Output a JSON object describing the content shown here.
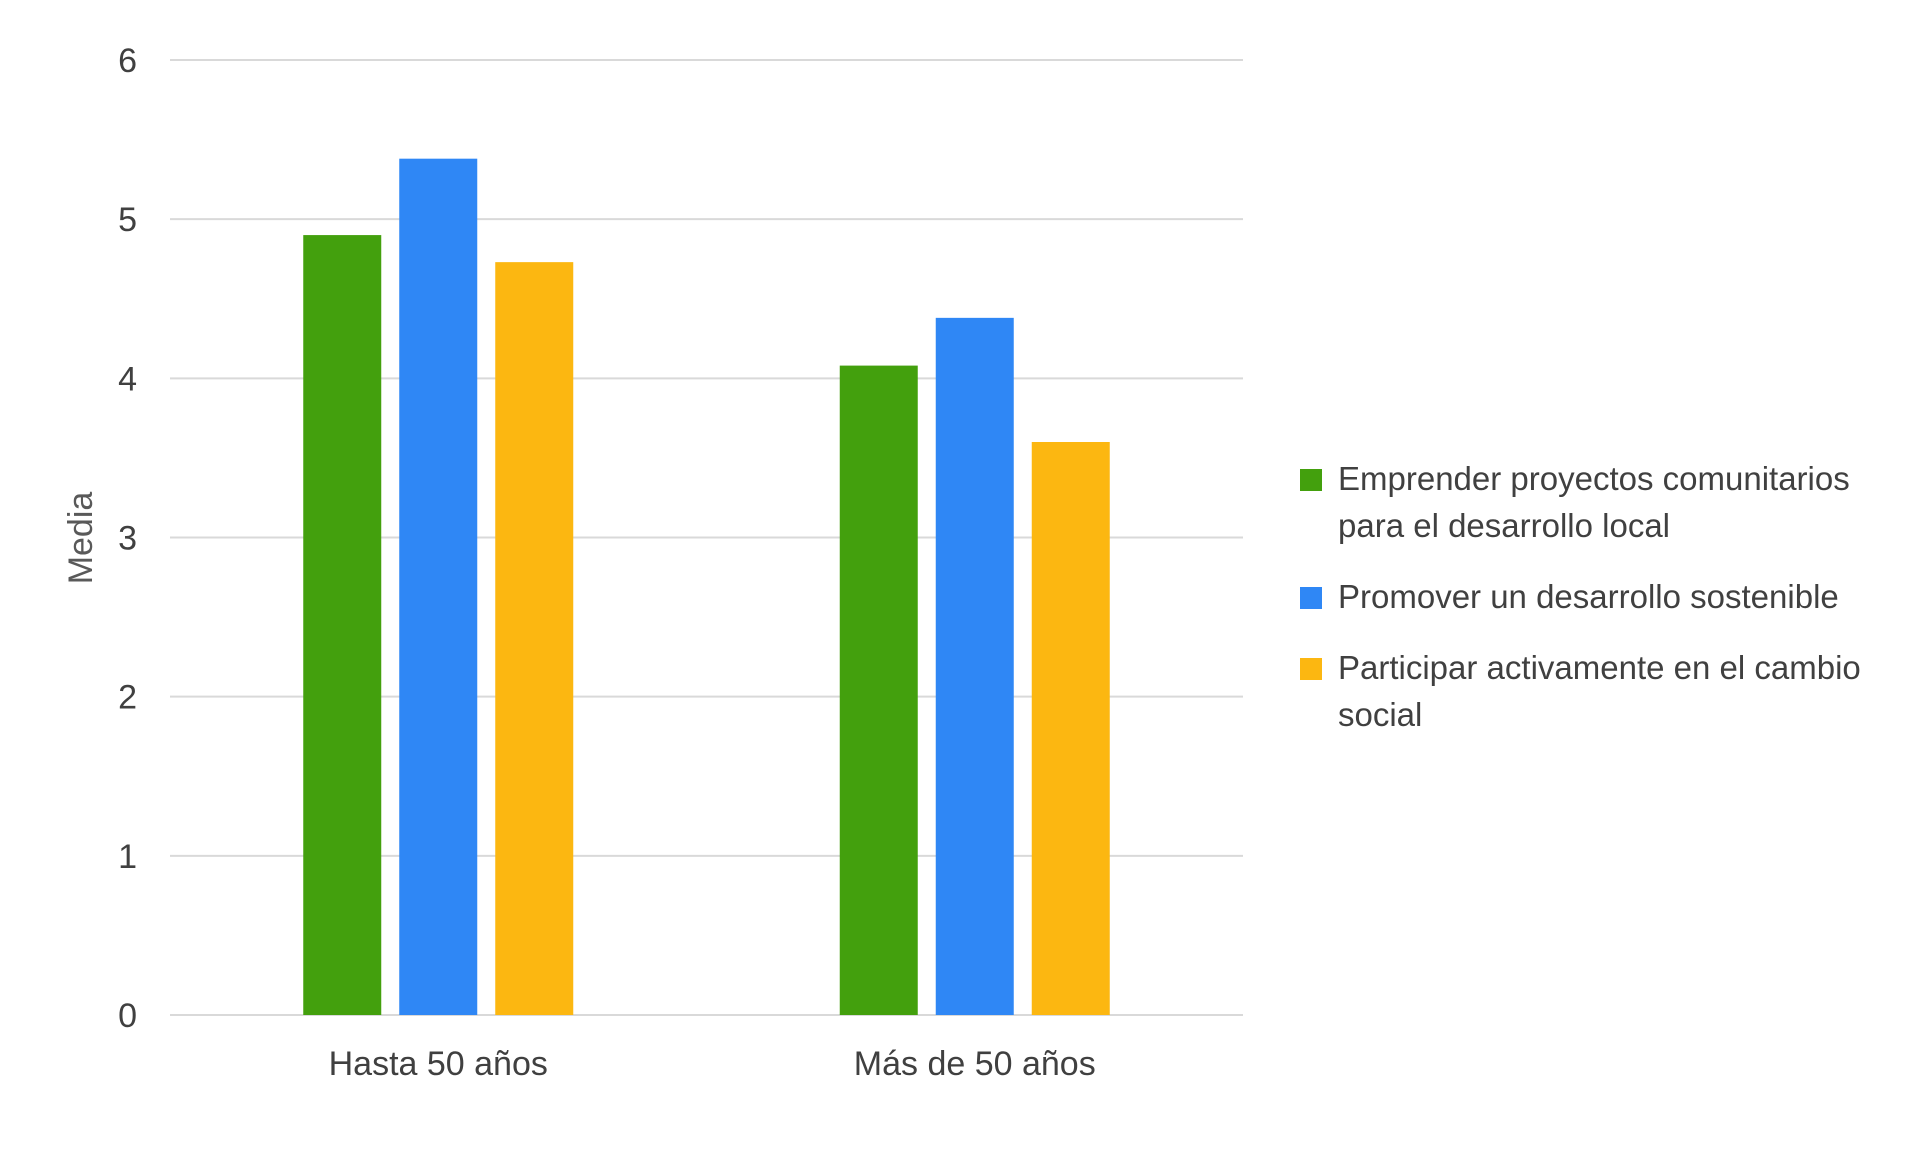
{
  "chart_data": {
    "type": "bar",
    "title": "",
    "xlabel": "",
    "ylabel": "Media",
    "ylim": [
      0,
      6
    ],
    "yticks": [
      0,
      1,
      2,
      3,
      4,
      5,
      6
    ],
    "grid": true,
    "legend_position": "right",
    "categories": [
      "Hasta 50 años",
      "Más de 50 años"
    ],
    "series": [
      {
        "name": "Emprender proyectos comunitarios para el desarrollo local",
        "color": "#43a00d",
        "values": [
          4.9,
          4.08
        ]
      },
      {
        "name": "Promover un desarrollo sostenible",
        "color": "#2f87f5",
        "values": [
          5.38,
          4.38
        ]
      },
      {
        "name": "Participar activamente en el cambio social",
        "color": "#fcb711",
        "values": [
          4.73,
          3.6
        ]
      }
    ]
  }
}
